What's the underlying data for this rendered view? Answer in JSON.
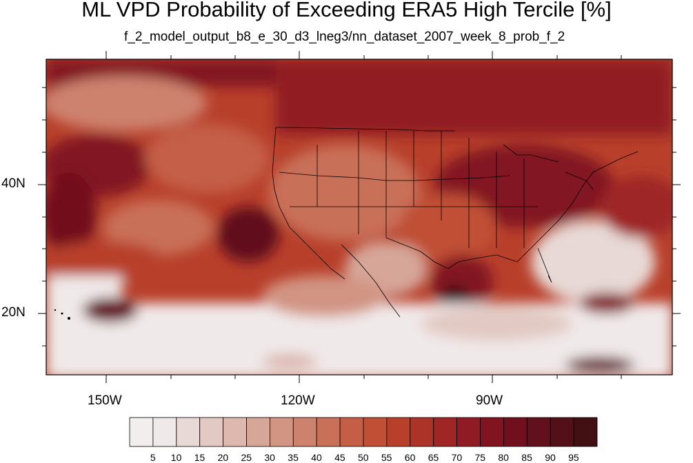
{
  "title": "ML VPD Probability of Exceeding ERA5 High Tercile [%]",
  "subtitle": "f_2_model_output_b8_e_30_d3_lneg3/nn_dataset_2007_week_8_prob_f_2",
  "lon_labels": [
    "150W",
    "120W",
    "90W"
  ],
  "lat_labels": [
    "40N",
    "20N"
  ],
  "colorbar": {
    "labels": [
      "5",
      "10",
      "15",
      "20",
      "25",
      "30",
      "35",
      "40",
      "45",
      "50",
      "55",
      "60",
      "65",
      "70",
      "75",
      "80",
      "85",
      "90",
      "95"
    ],
    "colors": [
      "#f0e9e9",
      "#e8d9d6",
      "#e2c9c3",
      "#dcb8ae",
      "#d6a699",
      "#d29483",
      "#cd826e",
      "#c97058",
      "#c55e46",
      "#c04f36",
      "#b8402b",
      "#ac3327",
      "#9f2625",
      "#911b24",
      "#821422",
      "#720f1e",
      "#62101b",
      "#531018",
      "#421013"
    ]
  }
}
